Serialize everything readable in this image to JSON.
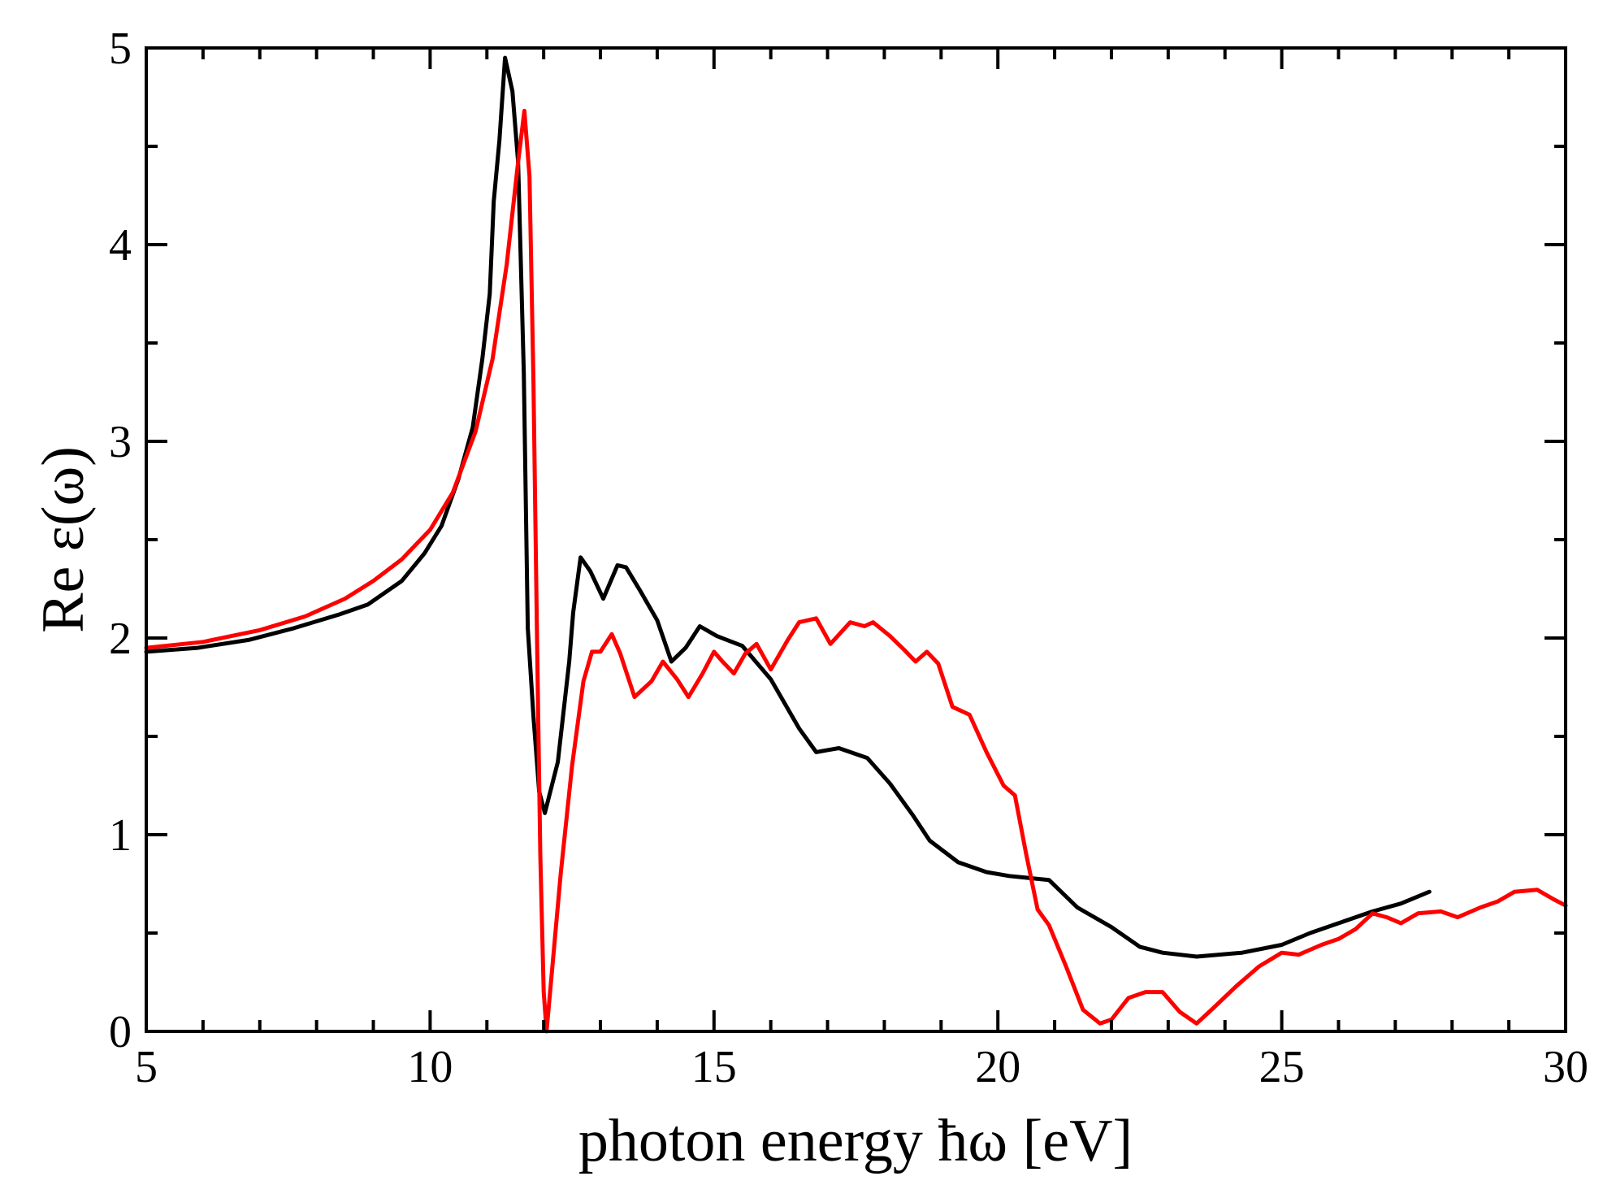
{
  "chart_data": {
    "type": "line",
    "title": "",
    "xlabel": "photon energy ħω [eV]",
    "ylabel": "Re ε(ω)",
    "xlim": [
      5,
      30
    ],
    "ylim": [
      0,
      5
    ],
    "xticks": [
      5,
      10,
      15,
      20,
      25,
      30
    ],
    "yticks": [
      0,
      1,
      2,
      3,
      4,
      5
    ],
    "grid": false,
    "legend": "none",
    "series": [
      {
        "name": "black",
        "color": "#000000",
        "points": [
          [
            5.0,
            1.93
          ],
          [
            5.9,
            1.95
          ],
          [
            6.8,
            1.99
          ],
          [
            7.6,
            2.05
          ],
          [
            8.4,
            2.12
          ],
          [
            8.9,
            2.17
          ],
          [
            9.5,
            2.29
          ],
          [
            9.9,
            2.43
          ],
          [
            10.2,
            2.57
          ],
          [
            10.5,
            2.81
          ],
          [
            10.75,
            3.07
          ],
          [
            10.92,
            3.42
          ],
          [
            11.05,
            3.75
          ],
          [
            11.12,
            4.22
          ],
          [
            11.22,
            4.53
          ],
          [
            11.32,
            4.95
          ],
          [
            11.45,
            4.78
          ],
          [
            11.55,
            4.42
          ],
          [
            11.65,
            3.35
          ],
          [
            11.72,
            2.05
          ],
          [
            11.82,
            1.6
          ],
          [
            11.92,
            1.22
          ],
          [
            12.02,
            1.11
          ],
          [
            12.25,
            1.37
          ],
          [
            12.45,
            1.88
          ],
          [
            12.52,
            2.13
          ],
          [
            12.65,
            2.41
          ],
          [
            12.82,
            2.34
          ],
          [
            13.05,
            2.2
          ],
          [
            13.3,
            2.37
          ],
          [
            13.45,
            2.36
          ],
          [
            13.7,
            2.24
          ],
          [
            14.0,
            2.09
          ],
          [
            14.25,
            1.88
          ],
          [
            14.5,
            1.95
          ],
          [
            14.75,
            2.06
          ],
          [
            15.05,
            2.01
          ],
          [
            15.5,
            1.96
          ],
          [
            16.0,
            1.79
          ],
          [
            16.5,
            1.54
          ],
          [
            16.8,
            1.42
          ],
          [
            17.2,
            1.44
          ],
          [
            17.7,
            1.39
          ],
          [
            18.1,
            1.26
          ],
          [
            18.5,
            1.1
          ],
          [
            18.8,
            0.97
          ],
          [
            19.3,
            0.86
          ],
          [
            19.8,
            0.81
          ],
          [
            20.2,
            0.79
          ],
          [
            20.9,
            0.77
          ],
          [
            21.4,
            0.63
          ],
          [
            22.0,
            0.53
          ],
          [
            22.5,
            0.43
          ],
          [
            22.9,
            0.4
          ],
          [
            23.5,
            0.38
          ],
          [
            24.3,
            0.4
          ],
          [
            25.0,
            0.44
          ],
          [
            25.5,
            0.5
          ],
          [
            26.0,
            0.55
          ],
          [
            26.6,
            0.61
          ],
          [
            27.1,
            0.65
          ],
          [
            27.6,
            0.71
          ]
        ]
      },
      {
        "name": "red",
        "color": "#ff0000",
        "points": [
          [
            5.0,
            1.95
          ],
          [
            6.0,
            1.98
          ],
          [
            7.0,
            2.04
          ],
          [
            7.8,
            2.11
          ],
          [
            8.5,
            2.2
          ],
          [
            9.0,
            2.29
          ],
          [
            9.5,
            2.4
          ],
          [
            10.0,
            2.55
          ],
          [
            10.4,
            2.74
          ],
          [
            10.8,
            3.05
          ],
          [
            11.1,
            3.42
          ],
          [
            11.35,
            3.9
          ],
          [
            11.55,
            4.42
          ],
          [
            11.66,
            4.68
          ],
          [
            11.75,
            4.35
          ],
          [
            11.82,
            3.3
          ],
          [
            11.88,
            2.05
          ],
          [
            11.94,
            0.9
          ],
          [
            12.0,
            0.2
          ],
          [
            12.05,
            0.0
          ],
          [
            12.12,
            0.22
          ],
          [
            12.3,
            0.8
          ],
          [
            12.5,
            1.35
          ],
          [
            12.7,
            1.78
          ],
          [
            12.85,
            1.93
          ],
          [
            13.0,
            1.93
          ],
          [
            13.2,
            2.02
          ],
          [
            13.35,
            1.92
          ],
          [
            13.6,
            1.7
          ],
          [
            13.9,
            1.78
          ],
          [
            14.1,
            1.88
          ],
          [
            14.35,
            1.79
          ],
          [
            14.55,
            1.7
          ],
          [
            14.8,
            1.82
          ],
          [
            15.0,
            1.93
          ],
          [
            15.15,
            1.88
          ],
          [
            15.35,
            1.82
          ],
          [
            15.55,
            1.92
          ],
          [
            15.75,
            1.97
          ],
          [
            16.0,
            1.84
          ],
          [
            16.3,
            1.99
          ],
          [
            16.5,
            2.08
          ],
          [
            16.8,
            2.1
          ],
          [
            17.05,
            1.97
          ],
          [
            17.4,
            2.08
          ],
          [
            17.65,
            2.06
          ],
          [
            17.8,
            2.08
          ],
          [
            18.1,
            2.01
          ],
          [
            18.35,
            1.94
          ],
          [
            18.55,
            1.88
          ],
          [
            18.75,
            1.93
          ],
          [
            18.95,
            1.87
          ],
          [
            19.2,
            1.65
          ],
          [
            19.5,
            1.61
          ],
          [
            19.8,
            1.42
          ],
          [
            20.1,
            1.25
          ],
          [
            20.3,
            1.2
          ],
          [
            20.5,
            0.9
          ],
          [
            20.7,
            0.62
          ],
          [
            20.9,
            0.54
          ],
          [
            21.2,
            0.33
          ],
          [
            21.5,
            0.11
          ],
          [
            21.8,
            0.04
          ],
          [
            22.0,
            0.06
          ],
          [
            22.3,
            0.17
          ],
          [
            22.6,
            0.2
          ],
          [
            22.9,
            0.2
          ],
          [
            23.2,
            0.1
          ],
          [
            23.5,
            0.04
          ],
          [
            23.8,
            0.12
          ],
          [
            24.2,
            0.23
          ],
          [
            24.6,
            0.33
          ],
          [
            25.0,
            0.4
          ],
          [
            25.3,
            0.39
          ],
          [
            25.7,
            0.44
          ],
          [
            26.0,
            0.47
          ],
          [
            26.3,
            0.52
          ],
          [
            26.6,
            0.6
          ],
          [
            26.85,
            0.58
          ],
          [
            27.1,
            0.55
          ],
          [
            27.4,
            0.6
          ],
          [
            27.8,
            0.61
          ],
          [
            28.1,
            0.58
          ],
          [
            28.5,
            0.63
          ],
          [
            28.8,
            0.66
          ],
          [
            29.1,
            0.71
          ],
          [
            29.5,
            0.72
          ],
          [
            29.8,
            0.67
          ],
          [
            30.0,
            0.64
          ]
        ]
      }
    ]
  }
}
